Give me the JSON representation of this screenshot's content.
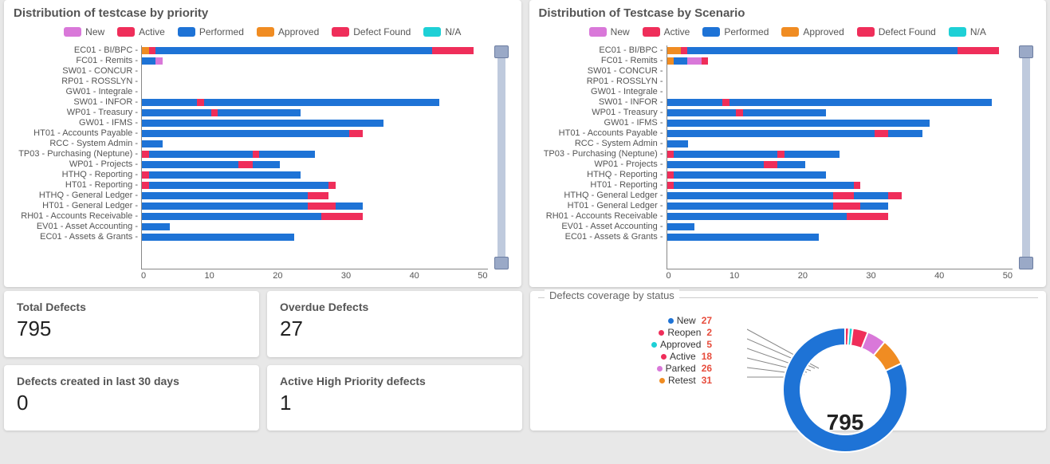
{
  "colors": {
    "New": "#d978d9",
    "Active": "#ef2e5a",
    "Performed": "#1e73d6",
    "Approved": "#f08c22",
    "Defect Found": "#ef2e5a",
    "N/A": "#1ed0d6"
  },
  "legend_order": [
    "New",
    "Active",
    "Performed",
    "Approved",
    "Defect Found",
    "N/A"
  ],
  "categories": [
    "EC01 - BI/BPC",
    "FC01 - Remits",
    "SW01 - CONCUR",
    "RP01 - ROSSLYN",
    "GW01 - Integrale",
    "SW01 - INFOR",
    "WP01 - Treasury",
    "GW01 - IFMS",
    "HT01 - Accounts Payable",
    "RCC - System Admin",
    "TP03 - Purchasing (Neptune)",
    "WP01 - Projects",
    "HTHQ - Reporting",
    "HT01 - Reporting",
    "HTHQ - General Ledger",
    "HT01 - General Ledger",
    "RH01 - Accounts Receivable",
    "EV01 - Asset Accounting",
    "EC01 - Assets & Grants"
  ],
  "charts": [
    {
      "title": "Distribution of testcase by priority",
      "type": "stacked-bar-horizontal",
      "xlim": [
        0,
        50
      ],
      "xtick_step": 10,
      "label_fontsize": 11,
      "title_fontsize": 15,
      "background_color": "#ffffff",
      "rows": [
        [
          {
            "s": "Approved",
            "v": 1
          },
          {
            "s": "Defect Found",
            "v": 1
          },
          {
            "s": "Performed",
            "v": 40
          },
          {
            "s": "Defect Found",
            "v": 6
          }
        ],
        [
          {
            "s": "Performed",
            "v": 2
          },
          {
            "s": "New",
            "v": 1
          }
        ],
        [],
        [],
        [],
        [
          {
            "s": "Performed",
            "v": 8
          },
          {
            "s": "Defect Found",
            "v": 1
          },
          {
            "s": "Performed",
            "v": 34
          }
        ],
        [
          {
            "s": "Performed",
            "v": 10
          },
          {
            "s": "Defect Found",
            "v": 1
          },
          {
            "s": "Performed",
            "v": 12
          }
        ],
        [
          {
            "s": "Performed",
            "v": 35
          }
        ],
        [
          {
            "s": "Performed",
            "v": 30
          },
          {
            "s": "Defect Found",
            "v": 2
          }
        ],
        [
          {
            "s": "Performed",
            "v": 3
          }
        ],
        [
          {
            "s": "Defect Found",
            "v": 1
          },
          {
            "s": "Performed",
            "v": 15
          },
          {
            "s": "Defect Found",
            "v": 1
          },
          {
            "s": "Performed",
            "v": 8
          }
        ],
        [
          {
            "s": "Performed",
            "v": 14
          },
          {
            "s": "Defect Found",
            "v": 2
          },
          {
            "s": "Performed",
            "v": 4
          }
        ],
        [
          {
            "s": "Defect Found",
            "v": 1
          },
          {
            "s": "Performed",
            "v": 22
          }
        ],
        [
          {
            "s": "Defect Found",
            "v": 1
          },
          {
            "s": "Performed",
            "v": 26
          },
          {
            "s": "Defect Found",
            "v": 1
          }
        ],
        [
          {
            "s": "Performed",
            "v": 24
          },
          {
            "s": "Defect Found",
            "v": 3
          }
        ],
        [
          {
            "s": "Performed",
            "v": 24
          },
          {
            "s": "Defect Found",
            "v": 4
          },
          {
            "s": "Performed",
            "v": 4
          }
        ],
        [
          {
            "s": "Performed",
            "v": 26
          },
          {
            "s": "Defect Found",
            "v": 6
          }
        ],
        [
          {
            "s": "Performed",
            "v": 4
          }
        ],
        [
          {
            "s": "Performed",
            "v": 22
          }
        ]
      ]
    },
    {
      "title": "Distribution of Testcase by Scenario",
      "type": "stacked-bar-horizontal",
      "xlim": [
        0,
        50
      ],
      "xtick_step": 10,
      "label_fontsize": 11,
      "title_fontsize": 15,
      "background_color": "#ffffff",
      "rows": [
        [
          {
            "s": "Approved",
            "v": 2
          },
          {
            "s": "Defect Found",
            "v": 1
          },
          {
            "s": "Performed",
            "v": 39
          },
          {
            "s": "Defect Found",
            "v": 6
          }
        ],
        [
          {
            "s": "Approved",
            "v": 1
          },
          {
            "s": "Performed",
            "v": 2
          },
          {
            "s": "New",
            "v": 2
          },
          {
            "s": "Defect Found",
            "v": 1
          }
        ],
        [],
        [],
        [],
        [
          {
            "s": "Performed",
            "v": 8
          },
          {
            "s": "Defect Found",
            "v": 1
          },
          {
            "s": "Performed",
            "v": 38
          }
        ],
        [
          {
            "s": "Performed",
            "v": 10
          },
          {
            "s": "Defect Found",
            "v": 1
          },
          {
            "s": "Performed",
            "v": 12
          }
        ],
        [
          {
            "s": "Performed",
            "v": 20
          },
          {
            "s": "Defect Found",
            "v": 0
          },
          {
            "s": "Performed",
            "v": 18
          }
        ],
        [
          {
            "s": "Performed",
            "v": 30
          },
          {
            "s": "Defect Found",
            "v": 2
          },
          {
            "s": "Performed",
            "v": 5
          }
        ],
        [
          {
            "s": "Performed",
            "v": 3
          }
        ],
        [
          {
            "s": "Defect Found",
            "v": 1
          },
          {
            "s": "Performed",
            "v": 15
          },
          {
            "s": "Defect Found",
            "v": 1
          },
          {
            "s": "Performed",
            "v": 8
          }
        ],
        [
          {
            "s": "Performed",
            "v": 14
          },
          {
            "s": "Defect Found",
            "v": 2
          },
          {
            "s": "Performed",
            "v": 4
          }
        ],
        [
          {
            "s": "Defect Found",
            "v": 1
          },
          {
            "s": "Performed",
            "v": 22
          }
        ],
        [
          {
            "s": "Defect Found",
            "v": 1
          },
          {
            "s": "Performed",
            "v": 26
          },
          {
            "s": "Defect Found",
            "v": 1
          }
        ],
        [
          {
            "s": "Performed",
            "v": 24
          },
          {
            "s": "Defect Found",
            "v": 3
          },
          {
            "s": "Performed",
            "v": 5
          },
          {
            "s": "Defect Found",
            "v": 2
          }
        ],
        [
          {
            "s": "Performed",
            "v": 24
          },
          {
            "s": "Defect Found",
            "v": 4
          },
          {
            "s": "Performed",
            "v": 4
          }
        ],
        [
          {
            "s": "Performed",
            "v": 26
          },
          {
            "s": "Defect Found",
            "v": 6
          }
        ],
        [
          {
            "s": "Performed",
            "v": 4
          }
        ],
        [
          {
            "s": "Performed",
            "v": 22
          }
        ]
      ]
    }
  ],
  "kpis": [
    {
      "label": "Total Defects",
      "value": "795"
    },
    {
      "label": "Overdue Defects",
      "value": "27"
    },
    {
      "label": "Defects created in last 30 days",
      "value": "0"
    },
    {
      "label": "Active High Priority defects",
      "value": "1"
    }
  ],
  "donut": {
    "title": "Defects coverage by status",
    "center_value": "795",
    "legend": [
      {
        "label": "New",
        "count": "27",
        "color": "#1e73d6"
      },
      {
        "label": "Reopen",
        "count": "2",
        "color": "#ef2e5a"
      },
      {
        "label": "Approved",
        "count": "5",
        "color": "#1ed0d6"
      },
      {
        "label": "Active",
        "count": "18",
        "color": "#ef2e5a"
      },
      {
        "label": "Parked",
        "count": "26",
        "color": "#d978d9"
      },
      {
        "label": "Retest",
        "count": "31",
        "color": "#f08c22"
      }
    ],
    "slices": [
      {
        "color": "#1e73d6",
        "pct": 82
      },
      {
        "color": "#ef2e5a",
        "pct": 1
      },
      {
        "color": "#1ed0d6",
        "pct": 1
      },
      {
        "color": "#ef2e5a",
        "pct": 4
      },
      {
        "color": "#d978d9",
        "pct": 5
      },
      {
        "color": "#f08c22",
        "pct": 7
      }
    ],
    "ring_thickness": 22,
    "background_color": "#ffffff"
  }
}
